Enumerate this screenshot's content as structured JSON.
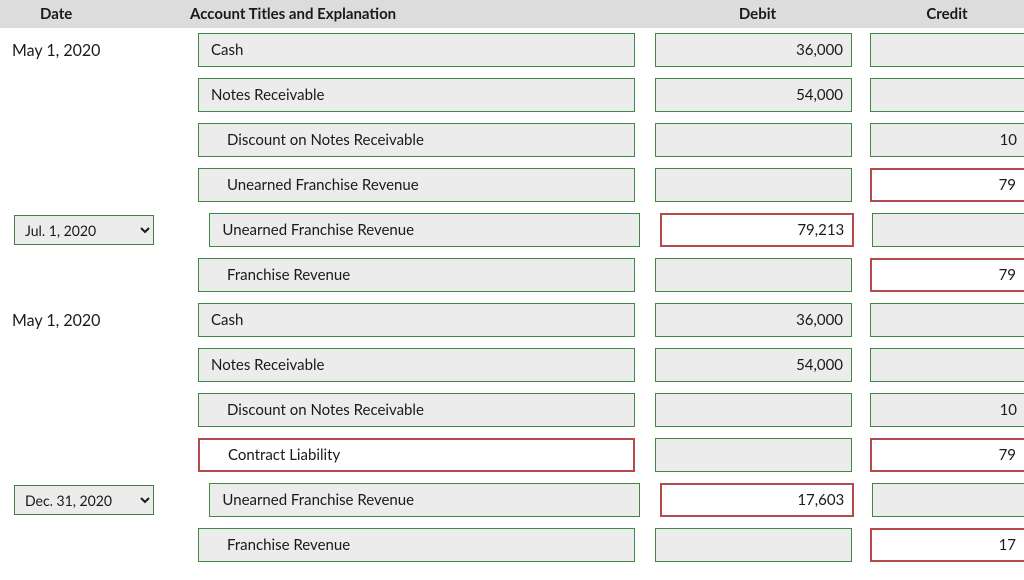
{
  "headers": {
    "date": "Date",
    "account": "Account Titles and Explanation",
    "debit": "Debit",
    "credit": "Credit"
  },
  "colors": {
    "header_bg": "#dcdcdc",
    "cell_bg": "#ececec",
    "green_border": "#3f8a3f",
    "red_border": "#b44a4a",
    "text": "#1a1a1a",
    "page_bg": "#ffffff"
  },
  "rows": [
    {
      "date_type": "text",
      "date": "May 1, 2020",
      "account": "Cash",
      "indent": 0,
      "acct_state": "green",
      "debit": "36,000",
      "debit_state": "green",
      "credit": "",
      "credit_state": "green"
    },
    {
      "date_type": "none",
      "date": "",
      "account": "Notes Receivable",
      "indent": 0,
      "acct_state": "green",
      "debit": "54,000",
      "debit_state": "green",
      "credit": "",
      "credit_state": "green"
    },
    {
      "date_type": "none",
      "date": "",
      "account": "Discount on Notes Receivable",
      "indent": 1,
      "acct_state": "green",
      "debit": "",
      "debit_state": "green",
      "credit": "10",
      "credit_state": "green"
    },
    {
      "date_type": "none",
      "date": "",
      "account": "Unearned Franchise Revenue",
      "indent": 1,
      "acct_state": "green",
      "debit": "",
      "debit_state": "green",
      "credit": "79",
      "credit_state": "red"
    },
    {
      "date_type": "select",
      "date": "Jul. 1, 2020",
      "account": "Unearned Franchise Revenue",
      "indent": 0,
      "acct_state": "green",
      "debit": "79,213",
      "debit_state": "red",
      "credit": "",
      "credit_state": "green"
    },
    {
      "date_type": "none",
      "date": "",
      "account": "Franchise Revenue",
      "indent": 1,
      "acct_state": "green",
      "debit": "",
      "debit_state": "green",
      "credit": "79",
      "credit_state": "red"
    },
    {
      "date_type": "text",
      "date": "May 1, 2020",
      "account": "Cash",
      "indent": 0,
      "acct_state": "green",
      "debit": "36,000",
      "debit_state": "green",
      "credit": "",
      "credit_state": "green"
    },
    {
      "date_type": "none",
      "date": "",
      "account": "Notes Receivable",
      "indent": 0,
      "acct_state": "green",
      "debit": "54,000",
      "debit_state": "green",
      "credit": "",
      "credit_state": "green"
    },
    {
      "date_type": "none",
      "date": "",
      "account": "Discount on Notes Receivable",
      "indent": 1,
      "acct_state": "green",
      "debit": "",
      "debit_state": "green",
      "credit": "10",
      "credit_state": "green"
    },
    {
      "date_type": "none",
      "date": "",
      "account": "Contract Liability",
      "indent": 1,
      "acct_state": "red",
      "debit": "",
      "debit_state": "green",
      "credit": "79",
      "credit_state": "red"
    },
    {
      "date_type": "select",
      "date": "Dec. 31, 2020",
      "account": "Unearned Franchise Revenue",
      "indent": 0,
      "acct_state": "green",
      "debit": "17,603",
      "debit_state": "red",
      "credit": "",
      "credit_state": "green"
    },
    {
      "date_type": "none",
      "date": "",
      "account": "Franchise Revenue",
      "indent": 1,
      "acct_state": "green",
      "debit": "",
      "debit_state": "green",
      "credit": "17",
      "credit_state": "red"
    }
  ]
}
